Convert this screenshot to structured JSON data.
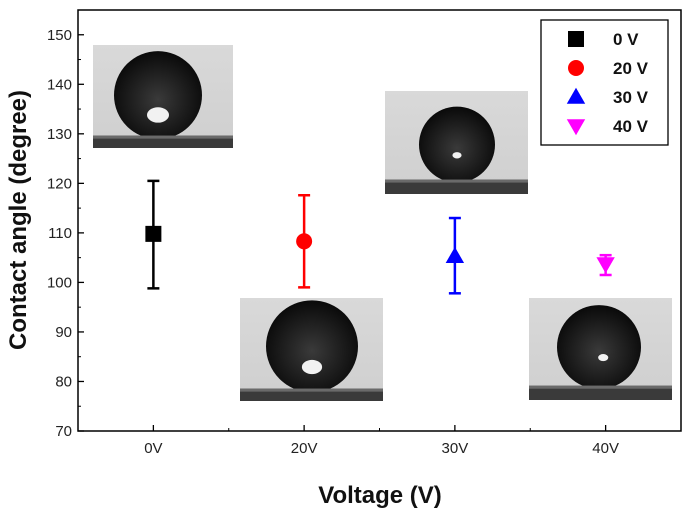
{
  "chart_data": {
    "type": "scatter",
    "title": "",
    "xlabel": "Voltage (V)",
    "ylabel": "Contact angle (degree)",
    "categories": [
      "0V",
      "20V",
      "30V",
      "40V"
    ],
    "ylim": [
      70,
      155
    ],
    "y_ticks": [
      70,
      80,
      90,
      100,
      110,
      120,
      130,
      140,
      150
    ],
    "legend_position": "top-right",
    "series": [
      {
        "name": "0 V",
        "category": "0V",
        "value": 109.8,
        "error_low": 98.8,
        "error_high": 120.5,
        "marker": "square",
        "color": "#000000"
      },
      {
        "name": "20 V",
        "category": "20V",
        "value": 108.3,
        "error_low": 99.0,
        "error_high": 117.6,
        "marker": "circle",
        "color": "#ff0000"
      },
      {
        "name": "30 V",
        "category": "30V",
        "value": 105.3,
        "error_low": 97.8,
        "error_high": 113.0,
        "marker": "triangle-up",
        "color": "#0000ff"
      },
      {
        "name": "40 V",
        "category": "40V",
        "value": 103.7,
        "error_low": 101.5,
        "error_high": 105.5,
        "marker": "triangle-down",
        "color": "#ff00ff"
      }
    ],
    "inset_images": [
      {
        "name": "droplet-0v",
        "description": "water droplet photo at 0 V"
      },
      {
        "name": "droplet-20v",
        "description": "water droplet photo at 20 V"
      },
      {
        "name": "droplet-30v",
        "description": "water droplet photo at 30 V"
      },
      {
        "name": "droplet-40v",
        "description": "water droplet photo at 40 V"
      }
    ]
  }
}
